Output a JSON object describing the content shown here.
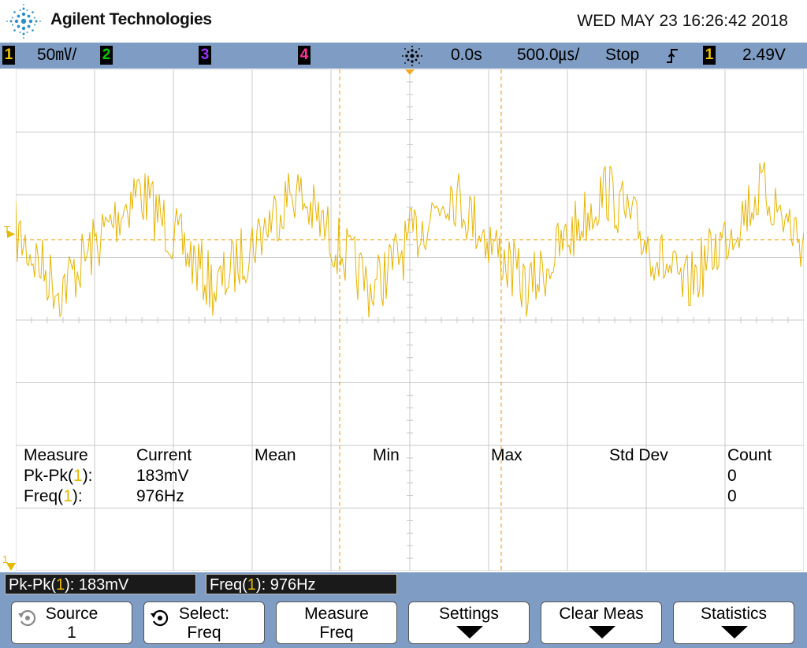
{
  "header": {
    "brand": "Agilent Technologies",
    "datetime": "WED MAY 23 16:26:42 2018",
    "logo_icon": "agilent-spark-logo"
  },
  "statusbar": {
    "ch1": {
      "num": "1",
      "color": "#f2c200",
      "scale": "50㎷/"
    },
    "ch2": {
      "num": "2",
      "color": "#00cc00"
    },
    "ch3": {
      "num": "3",
      "color": "#9933ff"
    },
    "ch4": {
      "num": "4",
      "color": "#ff3399"
    },
    "run_icon": "acquisition-spark-icon",
    "delay": "0.0s",
    "timebase": "500.0㎲/",
    "run_state": "Stop",
    "trigger_slope_icon": "rising-edge-icon",
    "trigger_source": "1",
    "trigger_level": "2.49V"
  },
  "scope": {
    "trace_color": "#e8b400",
    "channel1_marker": "1",
    "trigger_marker": "T",
    "measurement_cursors": "dashed orange lines"
  },
  "measure_table": {
    "headers": [
      "Measure",
      "Current",
      "Mean",
      "Min",
      "Max",
      "Std Dev",
      "Count"
    ],
    "rows": [
      {
        "name_pre": "Pk-Pk(",
        "ch": "1",
        "name_post": "):",
        "current": "183mV",
        "count": "0"
      },
      {
        "name_pre": "Freq(",
        "ch": "1",
        "name_post": "):",
        "current": "976Hz",
        "count": "0"
      }
    ]
  },
  "readouts": [
    {
      "pre": "Pk-Pk(",
      "ch": "1",
      "post": "): 183mV"
    },
    {
      "pre": "Freq(",
      "ch": "1",
      "post": "): 976Hz"
    }
  ],
  "softkeys": [
    {
      "line1": "Source",
      "line2": "1",
      "icon": "rotary-knob-icon"
    },
    {
      "line1": "Select:",
      "line2": "Freq",
      "icon": "rotary-knob-icon"
    },
    {
      "line1": "Measure",
      "line2": "Freq"
    },
    {
      "line1": "Settings",
      "icon": "down-arrow-icon"
    },
    {
      "line1": "Clear Meas",
      "icon": "down-arrow-icon"
    },
    {
      "line1": "Statistics",
      "icon": "down-arrow-icon"
    }
  ]
}
